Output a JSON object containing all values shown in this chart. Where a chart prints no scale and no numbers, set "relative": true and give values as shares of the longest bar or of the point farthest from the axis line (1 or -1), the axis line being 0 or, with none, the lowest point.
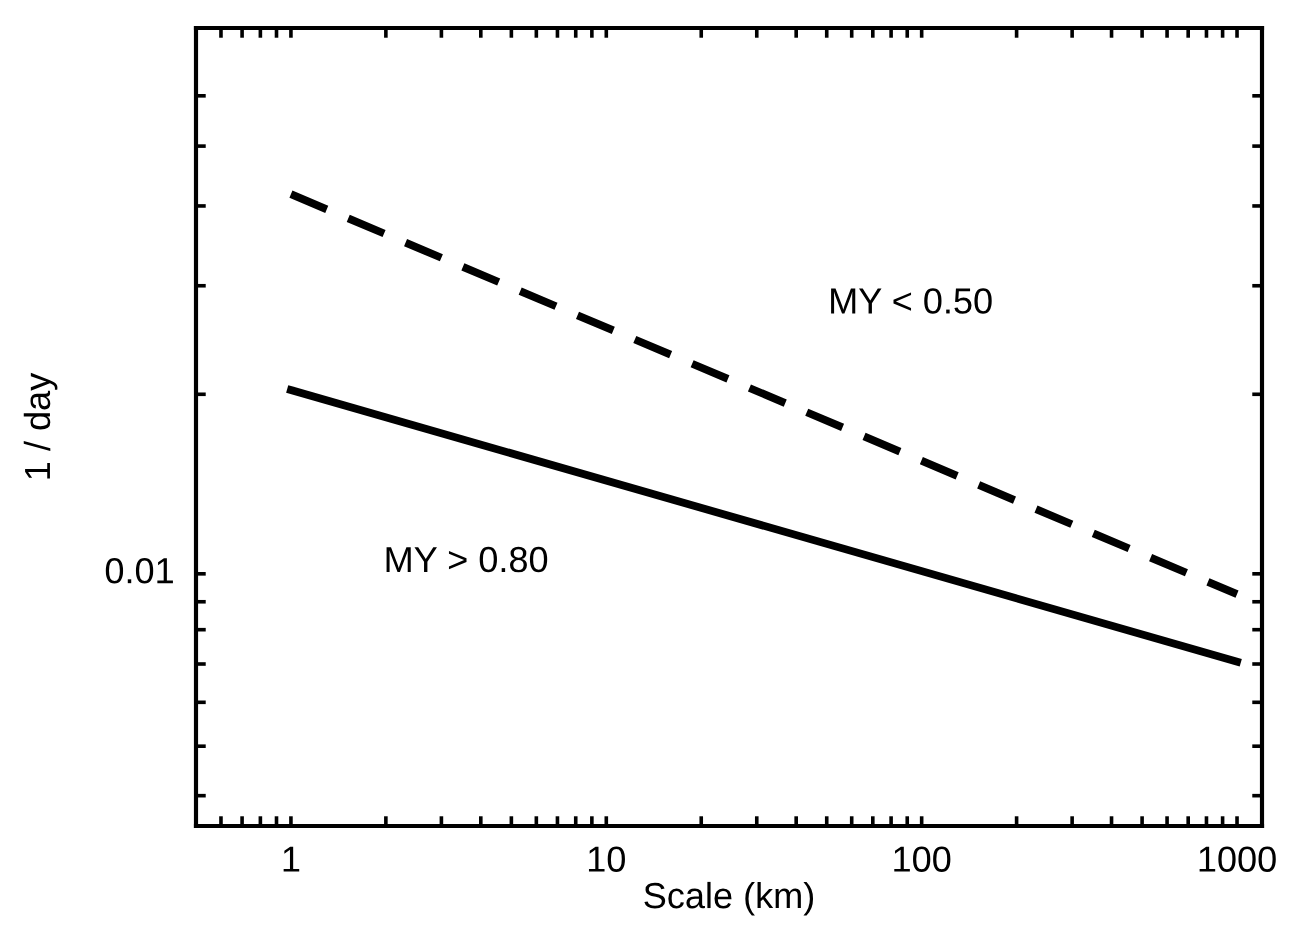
{
  "chart_data": {
    "type": "line",
    "xlabel": "Scale (km)",
    "ylabel": "1 / day",
    "grid": false,
    "legend": false,
    "relative": true,
    "annotations": [
      "0.01"
    ],
    "x": [
      1,
      1000
    ],
    "series": [
      {
        "name": "MY < 0.50",
        "color": "#000000",
        "line_style": "dashed",
        "values": [
          1,
          0.367
        ]
      },
      {
        "name": "MY > 0.80",
        "color": "#000000",
        "line_style": "solid",
        "values": [
          0.69,
          0.26
        ]
      }
    ],
    "xlim": [
      0.5,
      1200
    ],
    "xticks": [
      {
        "value": 0.6,
        "label": null
      },
      {
        "value": 0.7,
        "label": null
      },
      {
        "value": 0.8,
        "label": null
      },
      {
        "value": 0.9,
        "label": null
      },
      1,
      {
        "value": 2,
        "label": null
      },
      {
        "value": 3,
        "label": null
      },
      {
        "value": 4,
        "label": null
      },
      {
        "value": 5,
        "label": null
      },
      {
        "value": 6,
        "label": null
      },
      {
        "value": 7,
        "label": null
      },
      {
        "value": 8,
        "label": null
      },
      {
        "value": 9,
        "label": null
      },
      10,
      {
        "value": 20,
        "label": null
      },
      {
        "value": 30,
        "label": null
      },
      {
        "value": 40,
        "label": null
      },
      {
        "value": 50,
        "label": null
      },
      {
        "value": 60,
        "label": null
      },
      {
        "value": 70,
        "label": null
      },
      {
        "value": 80,
        "label": null
      },
      {
        "value": 90,
        "label": null
      },
      100,
      {
        "value": 200,
        "label": null
      },
      {
        "value": 300,
        "label": null
      },
      {
        "value": 400,
        "label": null
      },
      {
        "value": 500,
        "label": null
      },
      {
        "value": 600,
        "label": null
      },
      {
        "value": 700,
        "label": null
      },
      {
        "value": 800,
        "label": null
      },
      {
        "value": 900,
        "label": null
      },
      1000
    ],
    "log": "x"
  }
}
